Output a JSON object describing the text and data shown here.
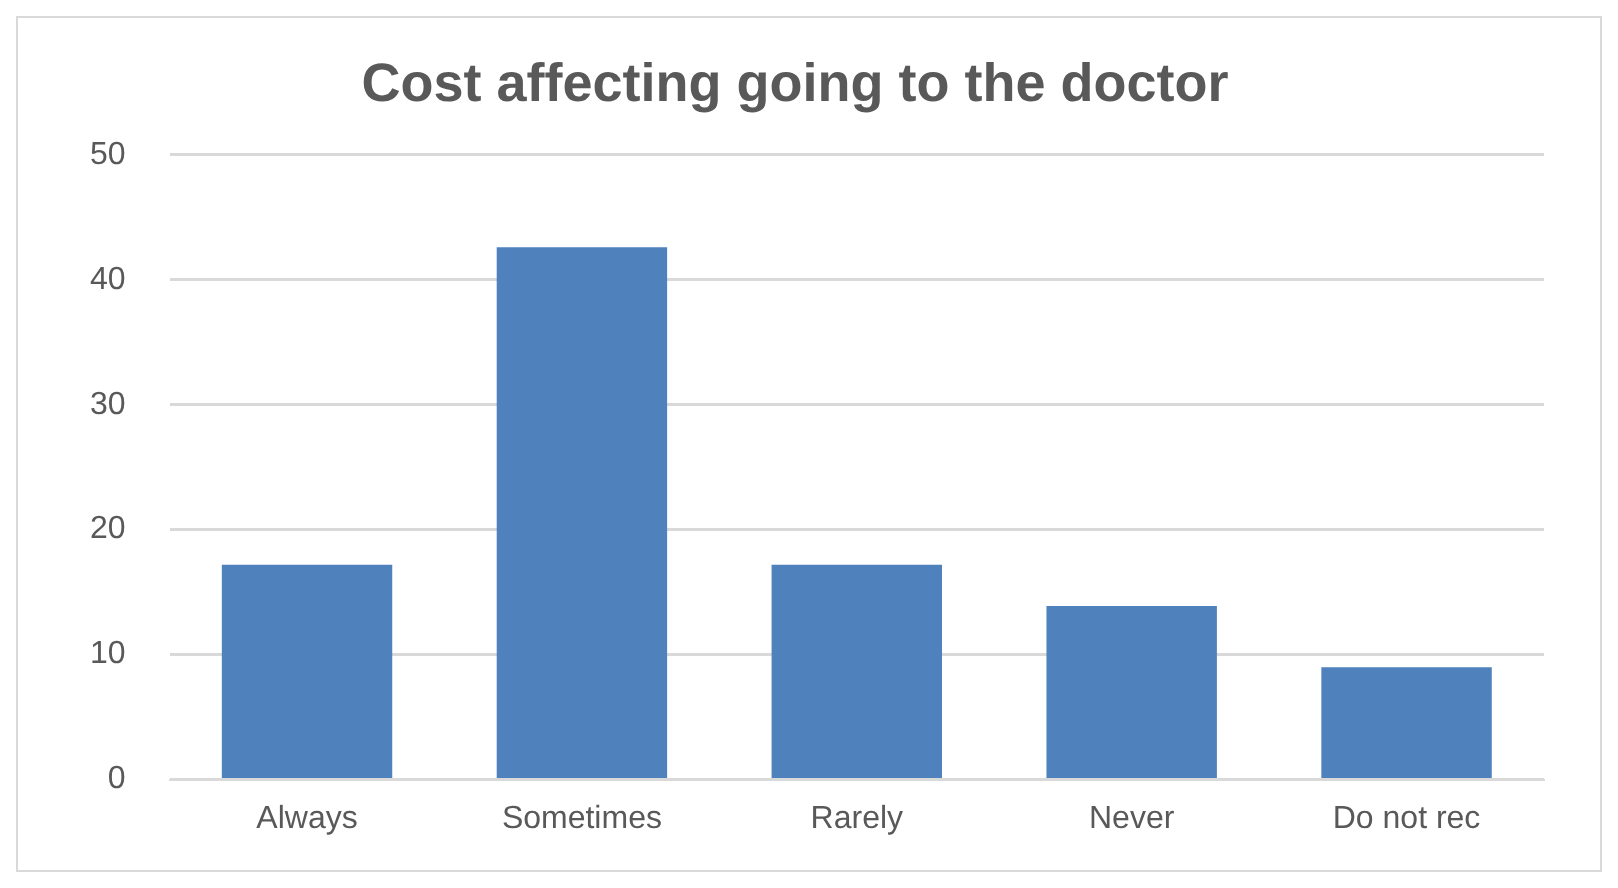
{
  "chart_data": {
    "type": "bar",
    "title": "Cost affecting going to the doctor",
    "categories": [
      "Always",
      "Sometimes",
      "Rarely",
      "Never",
      "Do not rec"
    ],
    "values": [
      17.2,
      42.6,
      17.2,
      13.9,
      9.0
    ],
    "color": "#4f81bd",
    "ylim": [
      0,
      50
    ],
    "yticks": [
      0,
      10,
      20,
      30,
      40,
      50
    ],
    "grid": "y",
    "legend": false
  }
}
